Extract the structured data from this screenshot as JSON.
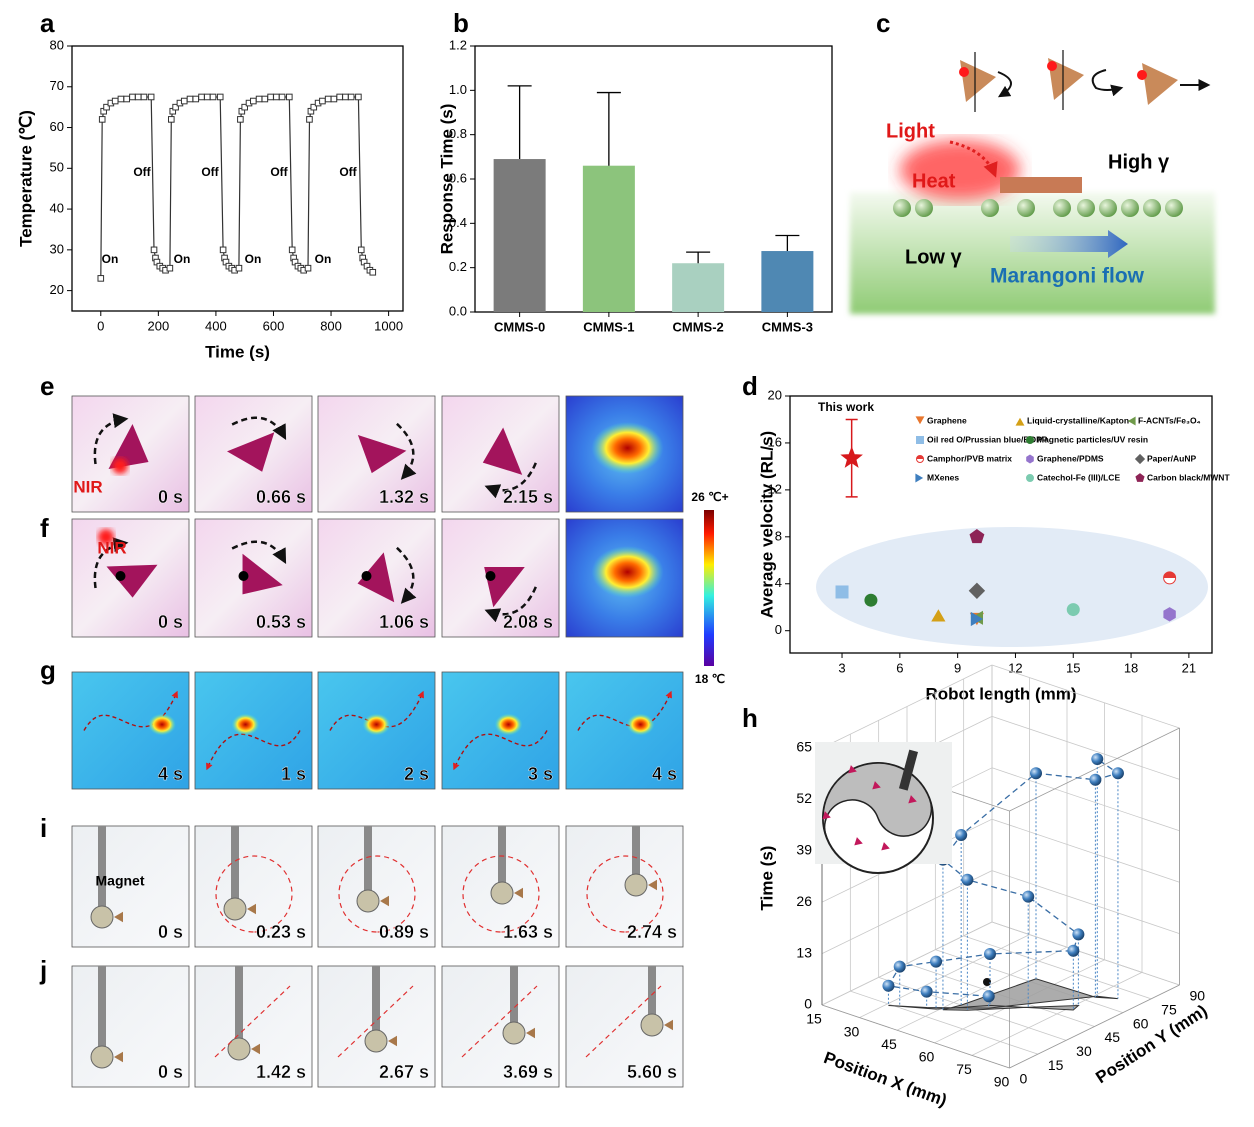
{
  "panel_labels": [
    "a",
    "b",
    "c",
    "d",
    "e",
    "f",
    "g",
    "h",
    "i",
    "j"
  ],
  "chart_data": [
    {
      "type": "line",
      "x_label": "Time (s)",
      "y_label": "Temperature (℃)",
      "xlim": [
        -100,
        1050
      ],
      "xticks": [
        0,
        200,
        400,
        600,
        800,
        1000
      ],
      "ylim": [
        15,
        80
      ],
      "yticks": [
        20,
        30,
        40,
        50,
        60,
        70,
        80
      ],
      "color": "#333333",
      "marker": "open-square",
      "annotations": [
        "On",
        "Off",
        "On",
        "Off",
        "On",
        "Off",
        "On",
        "Off"
      ],
      "x": [
        0,
        5,
        10,
        20,
        35,
        50,
        70,
        90,
        110,
        130,
        150,
        175,
        185,
        190,
        195,
        205,
        215,
        225,
        240,
        245,
        250,
        260,
        275,
        290,
        310,
        330,
        350,
        370,
        390,
        415,
        425,
        430,
        435,
        445,
        455,
        465,
        480,
        485,
        490,
        500,
        515,
        530,
        550,
        570,
        590,
        610,
        630,
        655,
        665,
        670,
        675,
        685,
        695,
        705,
        720,
        725,
        730,
        740,
        755,
        770,
        790,
        810,
        830,
        850,
        870,
        895,
        905,
        910,
        915,
        925,
        935,
        945
      ],
      "values": [
        23,
        62,
        64,
        65,
        66,
        66.5,
        67,
        67,
        67.5,
        67.5,
        67.5,
        67.5,
        30,
        28,
        27,
        26,
        25.5,
        25,
        25.5,
        62,
        64,
        65,
        66,
        66.5,
        67,
        67,
        67.5,
        67.5,
        67.5,
        67.5,
        30,
        28,
        27,
        26,
        25.5,
        25,
        25.5,
        62,
        64,
        65,
        66,
        66.5,
        67,
        67,
        67.5,
        67.5,
        67.5,
        67.5,
        30,
        28,
        27,
        26,
        25.5,
        25,
        25.5,
        62,
        64,
        65,
        66,
        66.5,
        67,
        67,
        67.5,
        67.5,
        67.5,
        67.5,
        30,
        28,
        27,
        26,
        25,
        24.5
      ]
    },
    {
      "type": "bar",
      "y_label": "Response Time (s)",
      "categories": [
        "CMMS-0",
        "CMMS-1",
        "CMMS-2",
        "CMMS-3"
      ],
      "values": [
        0.69,
        0.66,
        0.22,
        0.275
      ],
      "errors": [
        0.33,
        0.33,
        0.05,
        0.07
      ],
      "colors": [
        "#7b7b7b",
        "#8cc47c",
        "#a9d0c0",
        "#4f88b3"
      ],
      "ylim": [
        0,
        1.2
      ],
      "yticks": [
        {
          "value": 0,
          "label": "0.0"
        },
        0.2,
        0.4,
        0.6,
        0.8,
        {
          "value": 1,
          "label": "1.0"
        },
        1.2
      ]
    },
    {
      "type": "scatter",
      "x_label": "Robot length (mm)",
      "y_label": "Average velocity (RL/s)",
      "xlim": [
        0.3,
        22.2
      ],
      "xticks": [
        3,
        6,
        9,
        12,
        15,
        18,
        21
      ],
      "ylim": [
        -1.9,
        20
      ],
      "yticks": [
        0,
        4,
        8,
        12,
        16,
        20
      ],
      "series": [
        {
          "name": "This work",
          "color": "#d7191c",
          "marker": "star",
          "x": [
            3.5
          ],
          "values": [
            14.7
          ],
          "errors": [
            3.3
          ]
        },
        {
          "name": "Graphene",
          "color": "#e8772e",
          "marker": "triangle-down",
          "x": [
            10
          ],
          "values": [
            1
          ]
        },
        {
          "name": "Liquid-crystalline/Kapton",
          "color": "#d4a017",
          "marker": "triangle",
          "x": [
            8
          ],
          "values": [
            1.3
          ]
        },
        {
          "name": "F-ACNTs/Fe₃O₄",
          "color": "#6f9a4a",
          "marker": "triangle-left",
          "x": [
            10
          ],
          "values": [
            1.1
          ]
        },
        {
          "name": "Oil red O/Prussian blue/BOPP",
          "color": "#8fbde6",
          "marker": "square",
          "x": [
            3
          ],
          "values": [
            3.3
          ]
        },
        {
          "name": "Magnetic particles/UV resin",
          "color": "#2e7d32",
          "marker": "circle",
          "x": [
            4.5
          ],
          "values": [
            2.6
          ]
        },
        {
          "name": "Camphor/PVB matrix",
          "color": "#e53935",
          "marker": "half-circle",
          "x": [
            20
          ],
          "values": [
            4.5
          ]
        },
        {
          "name": "Graphene/PDMS",
          "color": "#9575cd",
          "marker": "hexagon",
          "x": [
            20
          ],
          "values": [
            1.4
          ]
        },
        {
          "name": "Paper/AuNP",
          "color": "#616161",
          "marker": "diamond",
          "x": [
            10
          ],
          "values": [
            3.4
          ]
        },
        {
          "name": "MXenes",
          "color": "#3f7fbf",
          "marker": "triangle-right",
          "x": [
            10
          ],
          "values": [
            1
          ]
        },
        {
          "name": "Catechol-Fe (III)/LCE",
          "color": "#7ccbb0",
          "marker": "circle",
          "x": [
            15
          ],
          "values": [
            1.8
          ]
        },
        {
          "name": "Carbon black/MWNT",
          "color": "#8e2456",
          "marker": "pentagon",
          "x": [
            10
          ],
          "values": [
            8
          ]
        }
      ]
    },
    {
      "type": "scatter3d",
      "x_label": "Position X (mm)",
      "y_label": "Position Y (mm)",
      "z_label": "Time (s)",
      "xlim": [
        15,
        90
      ],
      "xticks": [
        15,
        30,
        45,
        60,
        75,
        90
      ],
      "ylim": [
        0,
        90
      ],
      "yticks": [
        0,
        15,
        30,
        45,
        60,
        75,
        90
      ],
      "zlim": [
        0,
        65
      ],
      "zticks": [
        0,
        13,
        26,
        39,
        52,
        65
      ],
      "color": "#2f6aa3",
      "x": [
        56,
        41,
        31,
        34,
        44,
        55,
        77,
        76,
        65,
        52,
        46,
        48,
        53,
        76,
        82,
        76
      ],
      "y": [
        34,
        21,
        14,
        16,
        22,
        36,
        51,
        55,
        43,
        28,
        23,
        30,
        63,
        64,
        68,
        65
      ],
      "values": [
        3,
        4,
        5,
        10,
        12,
        13,
        15,
        18,
        28,
        33,
        38,
        43,
        52,
        55,
        57,
        60
      ]
    }
  ],
  "schematic": {
    "light": "Light",
    "heat": "Heat",
    "high": "High γ",
    "low": "Low γ",
    "flow": "Marangoni flow"
  },
  "image_rows": [
    {
      "label": "NIR",
      "times": [
        "0 s",
        "0.66 s",
        "1.32 s",
        "2.15 s"
      ]
    },
    {
      "label": "NIR",
      "times": [
        "0 s",
        "0.53 s",
        "1.06 s",
        "2.08 s"
      ]
    },
    {
      "times": [
        "4 s",
        "1 s",
        "2 s",
        "3 s",
        "4 s"
      ]
    },
    {
      "label": "Magnet",
      "times": [
        "0 s",
        "0.23 s",
        "0.89 s",
        "1.63 s",
        "2.74 s"
      ]
    },
    {
      "times": [
        "0 s",
        "1.42 s",
        "2.67 s",
        "3.69 s",
        "5.60 s"
      ]
    }
  ],
  "colorbar": {
    "max_label": "26 ℃+",
    "min_label": "18 ℃"
  }
}
